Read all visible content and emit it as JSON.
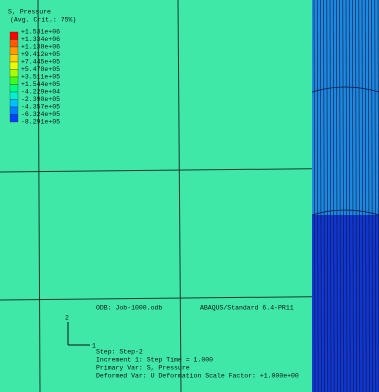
{
  "legend": {
    "title": "S, Pressure",
    "subtitle": "(Avg. Crit.: 75%)",
    "labels": [
      "+1.531e+06",
      "+1.334e+06",
      "+1.138e+06",
      "+9.412e+05",
      "+7.445e+05",
      "+5.478e+05",
      "+3.511e+05",
      "+1.544e+05",
      "-4.229e+04",
      "-2.390e+05",
      "-4.357e+05",
      "-6.324e+05",
      "-8.291e+05"
    ],
    "colors": [
      "#ff0000",
      "#ff5a00",
      "#ff9c00",
      "#ffd000",
      "#e8ff00",
      "#a8ff00",
      "#40ff20",
      "#00ff80",
      "#00f0d0",
      "#00c0ff",
      "#0080ff",
      "#0040ff"
    ]
  },
  "triad": {
    "axis_2": "2",
    "axis_1": "1"
  },
  "info": {
    "odb": "ODB: Job-1000.odb",
    "solver": "ABAQUS/Standard 6.4-PR11",
    "step": "Step: Step-2",
    "increment": "Increment      1: Step Time =    1.000",
    "primary": "Primary Var: S, Pressure",
    "deformed": "Deformed Var: U   Deformation Scale Factor: +1.000e+00"
  }
}
